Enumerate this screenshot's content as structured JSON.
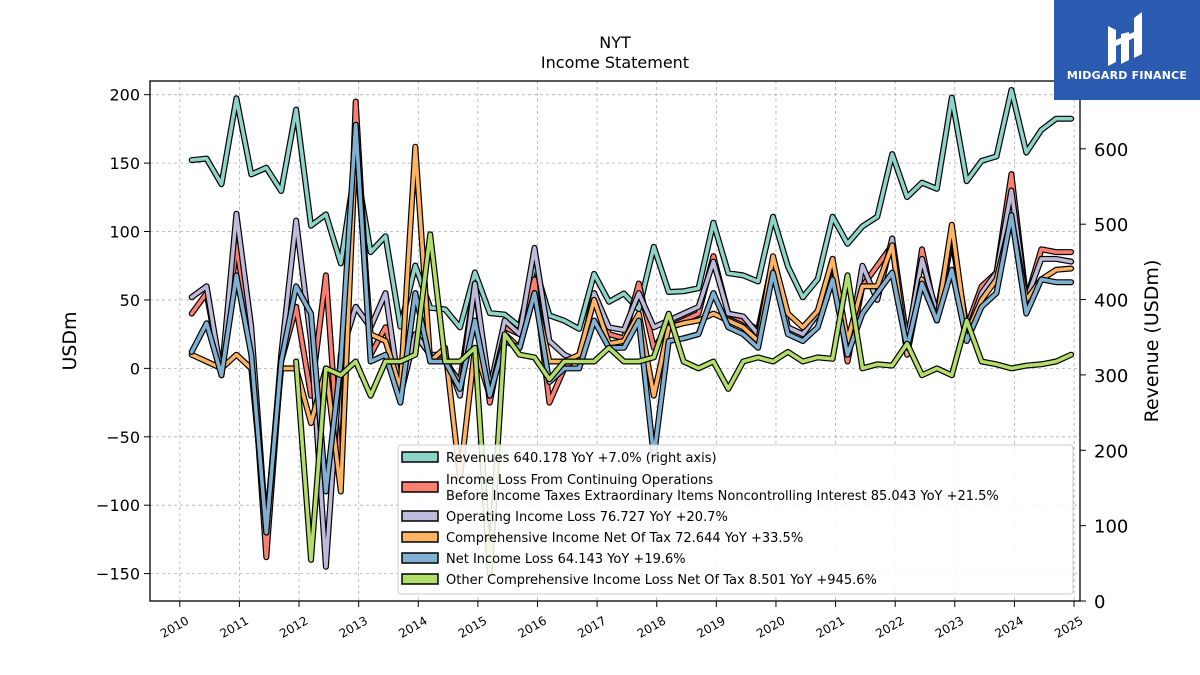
{
  "brand": {
    "name": "MIDGARD FINANCE",
    "icon": "midgard-logo-icon",
    "bg": "#2a5bb0"
  },
  "chart_data": {
    "type": "line",
    "title": "NYT",
    "subtitle": "Income Statement",
    "ylabel": "USDm",
    "y2label": "Revenue (USDm)",
    "ylim": [
      -170,
      210
    ],
    "y2lim": [
      0,
      690
    ],
    "xlim": [
      2009.5,
      2025.1
    ],
    "yticks": [
      -150,
      -100,
      -50,
      0,
      50,
      100,
      150,
      200
    ],
    "yticklabels": [
      "−150",
      "−100",
      "−50",
      "0",
      "50",
      "100",
      "150",
      "200"
    ],
    "y2ticks": [
      0,
      100,
      200,
      300,
      400,
      500,
      600
    ],
    "y2ticklabels": [
      "0",
      "100",
      "200",
      "300",
      "400",
      "500",
      "600"
    ],
    "xticks": [
      2010,
      2011,
      2012,
      2013,
      2014,
      2015,
      2016,
      2017,
      2018,
      2019,
      2020,
      2021,
      2022,
      2023,
      2024,
      2025
    ],
    "xticklabels": [
      "2010",
      "2011",
      "2012",
      "2013",
      "2014",
      "2015",
      "2016",
      "2017",
      "2018",
      "2019",
      "2020",
      "2021",
      "2022",
      "2023",
      "2024",
      "2025"
    ],
    "grid": true,
    "legend_position": "lower-right",
    "x": [
      2010.2,
      2010.45,
      2010.7,
      2010.95,
      2011.2,
      2011.45,
      2011.7,
      2011.95,
      2012.2,
      2012.45,
      2012.7,
      2012.95,
      2013.2,
      2013.45,
      2013.7,
      2013.95,
      2014.2,
      2014.45,
      2014.7,
      2014.95,
      2015.2,
      2015.45,
      2015.7,
      2015.95,
      2016.2,
      2016.45,
      2016.7,
      2016.95,
      2017.2,
      2017.45,
      2017.7,
      2017.95,
      2018.2,
      2018.45,
      2018.7,
      2018.95,
      2019.2,
      2019.45,
      2019.7,
      2019.95,
      2020.2,
      2020.45,
      2020.7,
      2020.95,
      2021.2,
      2021.45,
      2021.7,
      2021.95,
      2022.2,
      2022.45,
      2022.7,
      2022.95,
      2023.2,
      2023.45,
      2023.7,
      2023.95,
      2024.2,
      2024.45,
      2024.7,
      2024.95
    ],
    "series": [
      {
        "name": "Revenues",
        "legend": "Revenues  640.178 YoY +7.0% (right axis)",
        "axis": "right",
        "color": "#8dd3c7",
        "values": [
          585,
          587,
          553,
          667,
          566,
          575,
          544,
          652,
          498,
          513,
          448,
          580,
          463,
          484,
          364,
          445,
          389,
          387,
          363,
          436,
          382,
          380,
          364,
          446,
          379,
          372,
          361,
          434,
          397,
          408,
          387,
          470,
          410,
          411,
          415,
          502,
          435,
          432,
          424,
          510,
          444,
          403,
          427,
          510,
          474,
          497,
          510,
          593,
          536,
          555,
          547,
          668,
          557,
          584,
          590,
          678,
          595,
          625,
          640,
          640
        ]
      },
      {
        "name": "Income Loss From Continuing Operations Before Income Taxes Extraordinary Items Noncontrolling Interest",
        "legend_lines": [
          "Income Loss From Continuing Operations",
          "Before Income Taxes Extraordinary Items Noncontrolling Interest  85.043 YoY +21.5%"
        ],
        "axis": "left",
        "color": "#fb8072",
        "values": [
          40,
          55,
          -5,
          90,
          20,
          -138,
          5,
          45,
          -20,
          68,
          -85,
          195,
          10,
          30,
          -10,
          25,
          10,
          5,
          -10,
          62,
          -25,
          30,
          25,
          65,
          -25,
          0,
          10,
          50,
          25,
          22,
          62,
          15,
          30,
          35,
          40,
          82,
          40,
          35,
          28,
          80,
          30,
          25,
          40,
          78,
          5,
          60,
          75,
          90,
          15,
          87,
          35,
          95,
          30,
          60,
          70,
          142,
          50,
          87,
          85,
          85
        ]
      },
      {
        "name": "Operating Income Loss",
        "legend": "Operating Income Loss  76.727 YoY +20.7%",
        "axis": "left",
        "color": "#bebada",
        "values": [
          52,
          60,
          -5,
          113,
          30,
          -120,
          10,
          108,
          20,
          -145,
          10,
          45,
          30,
          55,
          -20,
          25,
          10,
          10,
          -20,
          62,
          -15,
          35,
          25,
          88,
          20,
          10,
          5,
          55,
          30,
          28,
          55,
          30,
          35,
          40,
          45,
          78,
          40,
          38,
          25,
          80,
          30,
          25,
          40,
          80,
          10,
          75,
          50,
          95,
          20,
          80,
          40,
          100,
          25,
          55,
          70,
          130,
          50,
          80,
          80,
          78
        ]
      },
      {
        "name": "Comprehensive Income Net Of Tax",
        "legend": "Comprehensive Income Net Of Tax  72.644 YoY +33.5%",
        "axis": "left",
        "color": "#fdb462",
        "values": [
          10,
          5,
          0,
          10,
          0,
          -115,
          0,
          0,
          -40,
          0,
          -90,
          165,
          25,
          20,
          -15,
          162,
          5,
          15,
          -80,
          15,
          -20,
          25,
          15,
          55,
          5,
          5,
          10,
          50,
          18,
          20,
          40,
          -20,
          30,
          33,
          35,
          40,
          35,
          30,
          20,
          82,
          40,
          30,
          42,
          80,
          20,
          60,
          60,
          90,
          10,
          65,
          35,
          105,
          25,
          50,
          65,
          110,
          50,
          65,
          72,
          73
        ]
      },
      {
        "name": "Net Income Loss",
        "legend": "Net Income Loss  64.143 YoY +19.6%",
        "axis": "left",
        "color": "#80b1d3",
        "values": [
          12,
          33,
          -5,
          68,
          10,
          -120,
          5,
          60,
          40,
          -90,
          5,
          178,
          5,
          10,
          -25,
          55,
          5,
          5,
          -15,
          35,
          -20,
          20,
          15,
          55,
          -10,
          0,
          0,
          35,
          15,
          15,
          35,
          -65,
          20,
          22,
          25,
          55,
          30,
          25,
          15,
          70,
          25,
          20,
          30,
          65,
          10,
          40,
          55,
          70,
          15,
          62,
          35,
          72,
          20,
          45,
          55,
          112,
          40,
          65,
          63,
          63
        ]
      },
      {
        "name": "Other Comprehensive Income Loss Net Of Tax",
        "legend": "Other Comprehensive Income Loss Net Of Tax  8.501 YoY +945.6%",
        "axis": "left",
        "color": "#b3de69",
        "values": [
          null,
          null,
          null,
          null,
          null,
          null,
          null,
          5,
          -140,
          0,
          -5,
          5,
          -20,
          5,
          5,
          10,
          98,
          5,
          5,
          15,
          -150,
          25,
          10,
          8,
          -8,
          5,
          5,
          5,
          15,
          5,
          5,
          8,
          40,
          5,
          0,
          5,
          -15,
          5,
          8,
          5,
          12,
          5,
          8,
          7,
          68,
          0,
          3,
          2,
          18,
          -5,
          0,
          -5,
          35,
          5,
          3,
          0,
          2,
          3,
          5,
          10
        ]
      }
    ]
  }
}
